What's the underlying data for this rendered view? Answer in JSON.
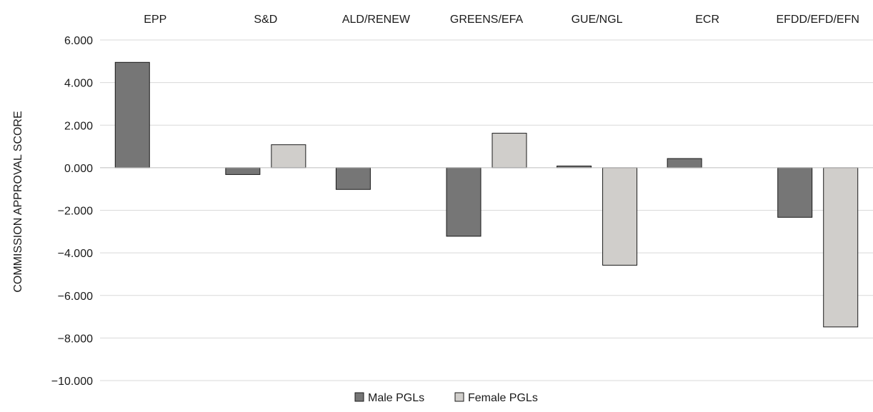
{
  "chart_data": {
    "type": "bar",
    "ylabel": "COMMISSION APPROVAL SCORE",
    "categories": [
      "EPP",
      "S&D",
      "ALD/RENEW",
      "GREENS/EFA",
      "GUE/NGL",
      "ECR",
      "EFDD/EFD/EFN"
    ],
    "series": [
      {
        "name": "Male PGLs",
        "color": "#767676",
        "values": [
          4.95,
          -0.32,
          -1.02,
          -3.22,
          0.08,
          0.43,
          -2.33
        ]
      },
      {
        "name": "Female PGLs",
        "color": "#d0cecb",
        "values": [
          null,
          1.08,
          null,
          1.62,
          -4.58,
          null,
          -7.48
        ]
      }
    ],
    "ylim": [
      -10,
      6
    ],
    "yticks": [
      6,
      4,
      2,
      0,
      -2,
      -4,
      -6,
      -8,
      -10
    ],
    "ytick_labels": [
      "6.000",
      "4.000",
      "2.000",
      "0.000",
      "−2.000",
      "−4.000",
      "−6.000",
      "−8.000",
      "−10.000"
    ],
    "grid": true,
    "legend_position": "bottom"
  }
}
